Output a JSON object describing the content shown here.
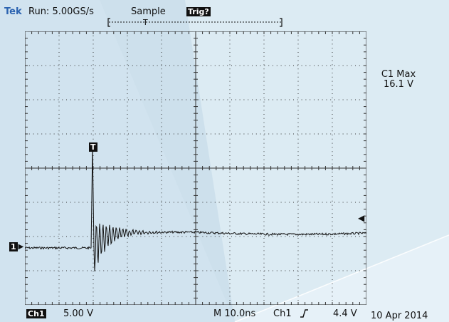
{
  "header": {
    "brand": "Tek",
    "run_label": "Run: 5.00GS/s",
    "mode": "Sample",
    "trigger_status": "Trig?"
  },
  "readout": {
    "title": "C1 Max",
    "value": "16.1 V"
  },
  "markers": {
    "trigger": "T",
    "channel": "1"
  },
  "footer": {
    "channel": "Ch1",
    "scale": "5.00 V",
    "timebase": "M 10.0ns",
    "trigger_source": "Ch1",
    "trigger_level": "4.4 V",
    "date": "10 Apr 2014"
  },
  "colors": {
    "screen_bg": "#dcebf3",
    "brand": "#2b63b0",
    "trace": "#111111"
  }
}
